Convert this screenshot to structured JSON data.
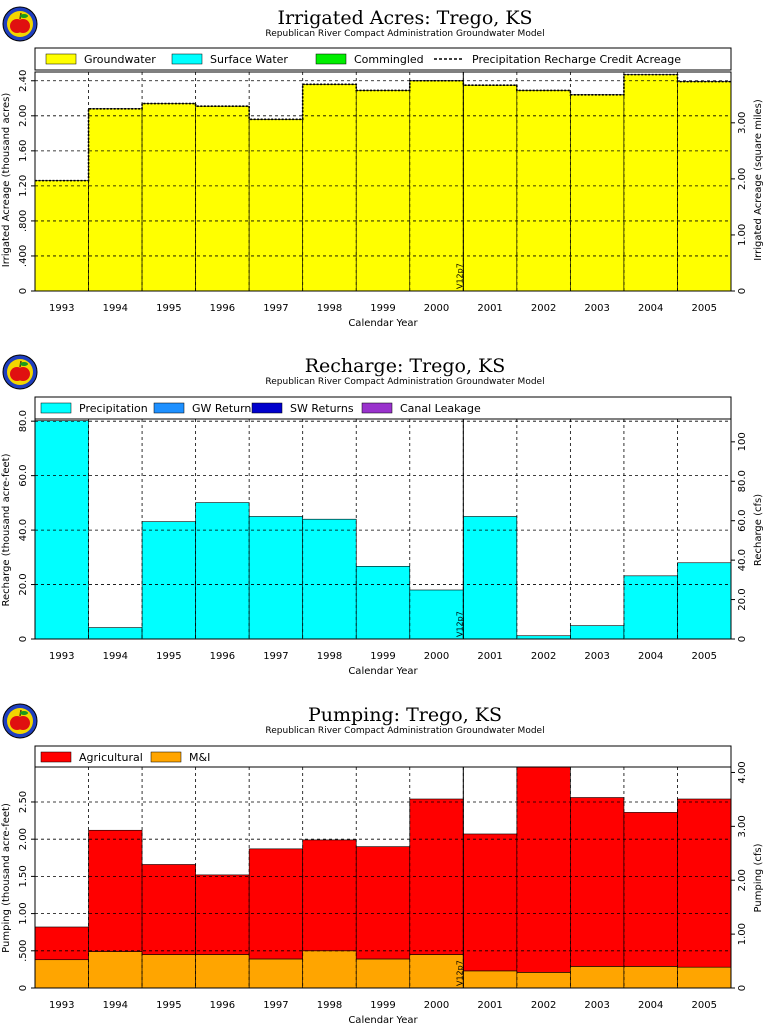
{
  "figure": {
    "subtitle": "Republican River Compact Administration Groundwater Model",
    "xlabel": "Calendar Year",
    "version_tag": "V12p7"
  },
  "chart_data": [
    {
      "type": "bar",
      "stacked": true,
      "title": "Irrigated Acres: Trego, KS",
      "subtitle": "Republican River Compact Administration Groundwater Model",
      "xlabel": "Calendar Year",
      "ylabel": "Irrigated Acreage (thousand acres)",
      "ylabel_right": "Irrigated Acreage (square miles)",
      "categories": [
        "1993",
        "1994",
        "1995",
        "1996",
        "1997",
        "1998",
        "1999",
        "2000",
        "2001",
        "2002",
        "2003",
        "2004",
        "2005"
      ],
      "ylim": [
        0,
        2.5
      ],
      "yticks": [
        0,
        0.4,
        0.8,
        1.2,
        1.6,
        2.0,
        2.4
      ],
      "ytick_labels": [
        "0",
        ".400",
        ".800",
        "1.20",
        "1.60",
        "2.00",
        "2.40"
      ],
      "right_scale": 0.0015625,
      "y2ticks": [
        0,
        1.0,
        2.0,
        3.0
      ],
      "y2tick_labels": [
        "0",
        "1.00",
        "2.00",
        "3.00"
      ],
      "grid": true,
      "legend_position": "top",
      "series": [
        {
          "name": "Groundwater",
          "color": "#ffff00",
          "values": [
            1.26,
            2.08,
            2.14,
            2.11,
            1.96,
            2.36,
            2.29,
            2.4,
            2.35,
            2.29,
            2.24,
            2.47,
            2.39
          ]
        },
        {
          "name": "Surface Water",
          "color": "#00ffff",
          "values": [
            0,
            0,
            0,
            0,
            0,
            0,
            0,
            0,
            0,
            0,
            0,
            0,
            0
          ]
        },
        {
          "name": "Commingled",
          "color": "#00ee00",
          "values": [
            0,
            0,
            0,
            0,
            0,
            0,
            0,
            0,
            0,
            0,
            0,
            0,
            0
          ]
        }
      ],
      "line_series": {
        "name": "Precipitation Recharge Credit Acreage",
        "style": "dashed",
        "values": [
          1.26,
          2.08,
          2.14,
          2.11,
          1.96,
          2.36,
          2.29,
          2.4,
          2.35,
          2.29,
          2.24,
          2.47,
          2.39
        ]
      },
      "marker_after": "2000"
    },
    {
      "type": "bar",
      "stacked": true,
      "title": "Recharge: Trego, KS",
      "subtitle": "Republican River Compact Administration Groundwater Model",
      "xlabel": "Calendar Year",
      "ylabel": "Recharge (thousand acre-feet)",
      "ylabel_right": "Recharge (cfs)",
      "categories": [
        "1993",
        "1994",
        "1995",
        "1996",
        "1997",
        "1998",
        "1999",
        "2000",
        "2001",
        "2002",
        "2003",
        "2004",
        "2005"
      ],
      "ylim": [
        0,
        80.8
      ],
      "yticks": [
        0,
        20,
        40,
        60,
        80
      ],
      "ytick_labels": [
        "0",
        "20.0",
        "40.0",
        "60.0",
        "80.0"
      ],
      "right_scale": 1.381,
      "y2ticks": [
        0,
        20,
        40,
        60,
        80,
        100
      ],
      "y2tick_labels": [
        "0",
        "20.0",
        "40.0",
        "60.0",
        "80.0",
        "100"
      ],
      "grid": true,
      "legend_position": "top",
      "series": [
        {
          "name": "Precipitation",
          "color": "#00ffff",
          "values": [
            80.2,
            4.2,
            43.1,
            50.1,
            45.0,
            44.0,
            26.7,
            18.0,
            45.0,
            1.2,
            4.9,
            23.2,
            28.0
          ]
        },
        {
          "name": "GW Returns",
          "color": "#1e90ff",
          "values": [
            0,
            0,
            0,
            0,
            0,
            0,
            0,
            0,
            0,
            0,
            0,
            0,
            0
          ]
        },
        {
          "name": "SW Returns",
          "color": "#0000cc",
          "values": [
            0,
            0,
            0,
            0,
            0,
            0,
            0,
            0,
            0,
            0,
            0,
            0,
            0
          ]
        },
        {
          "name": "Canal Leakage",
          "color": "#9932cc",
          "values": [
            0,
            0,
            0,
            0,
            0,
            0,
            0,
            0,
            0,
            0,
            0,
            0,
            0
          ]
        }
      ],
      "marker_after": "2000"
    },
    {
      "type": "bar",
      "stacked": true,
      "title": "Pumping: Trego, KS",
      "subtitle": "Republican River Compact Administration Groundwater Model",
      "xlabel": "Calendar Year",
      "ylabel": "Pumping (thousand acre-feet)",
      "ylabel_right": "Pumping (cfs)",
      "categories": [
        "1993",
        "1994",
        "1995",
        "1996",
        "1997",
        "1998",
        "1999",
        "2000",
        "2001",
        "2002",
        "2003",
        "2004",
        "2005"
      ],
      "ylim": [
        0,
        2.97
      ],
      "yticks": [
        0,
        0.5,
        1.0,
        1.5,
        2.0,
        2.5
      ],
      "ytick_labels": [
        "0",
        ".500",
        "1.00",
        "1.50",
        "2.00",
        "2.50"
      ],
      "right_scale": 1.381,
      "y2ticks": [
        0,
        1.0,
        2.0,
        3.0,
        4.0
      ],
      "y2tick_labels": [
        "0",
        "1.00",
        "2.00",
        "3.00",
        "4.00"
      ],
      "grid": true,
      "legend_position": "top",
      "series": [
        {
          "name": "M&I",
          "color": "#ffa500",
          "values": [
            0.38,
            0.49,
            0.45,
            0.45,
            0.39,
            0.5,
            0.39,
            0.45,
            0.23,
            0.21,
            0.29,
            0.29,
            0.28
          ]
        },
        {
          "name": "Agricultural",
          "color": "#ff0000",
          "values": [
            0.44,
            1.63,
            1.21,
            1.07,
            1.48,
            1.49,
            1.51,
            2.09,
            1.84,
            2.76,
            2.27,
            2.07,
            2.26
          ]
        }
      ],
      "legend_order": [
        "Agricultural",
        "M&I"
      ],
      "marker_after": "2000"
    }
  ]
}
